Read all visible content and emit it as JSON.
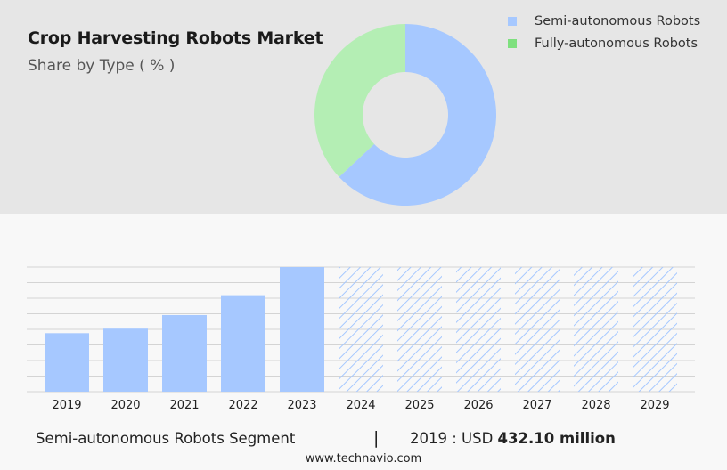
{
  "header": {
    "title": "Crop Harvesting Robots Market",
    "subtitle": "Share by Type ( % )"
  },
  "legend": [
    {
      "label": "Semi-autonomous Robots",
      "color": "#a6c8ff"
    },
    {
      "label": "Fully-autonomous Robots",
      "color": "#7ee07e"
    }
  ],
  "chart_data": [
    {
      "type": "pie",
      "variant": "donut",
      "categories": [
        "Semi-autonomous Robots",
        "Fully-autonomous Robots"
      ],
      "values": [
        63,
        37
      ],
      "colors": [
        "#a6c8ff",
        "#b4eeb4"
      ]
    },
    {
      "type": "bar",
      "categories": [
        "2019",
        "2020",
        "2021",
        "2022",
        "2023",
        "2024",
        "2025",
        "2026",
        "2027",
        "2028",
        "2029"
      ],
      "values": [
        432.1,
        466,
        566,
        713,
        921,
        null,
        null,
        null,
        null,
        null,
        null
      ],
      "forecast": [
        false,
        false,
        false,
        false,
        false,
        true,
        true,
        true,
        true,
        true,
        true
      ],
      "ylim": [
        0,
        921
      ],
      "grid": true,
      "color": "#a6c8ff"
    }
  ],
  "footer": {
    "segment": "Semi-autonomous Robots Segment",
    "separator": "|",
    "year_label": "2019 : USD",
    "value": "432.10 million",
    "source": "www.technavio.com"
  }
}
